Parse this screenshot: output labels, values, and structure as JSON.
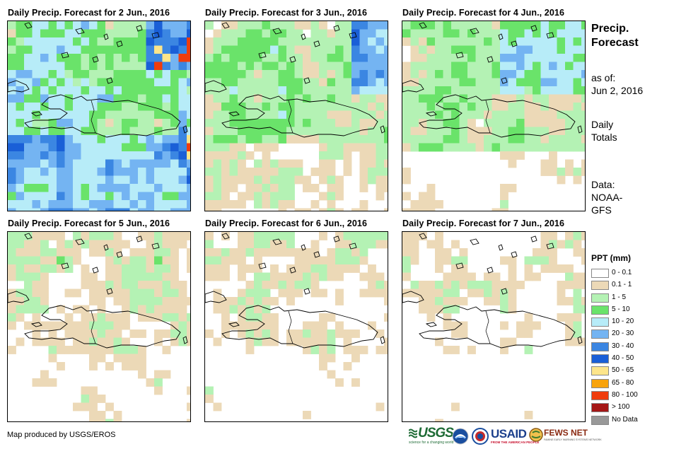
{
  "panels": [
    {
      "title": "Daily Precip. Forecast for 2 Jun., 2016",
      "day": 0
    },
    {
      "title": "Daily Precip. Forecast for 3 Jun., 2016",
      "day": 1
    },
    {
      "title": "Daily Precip. Forecast for 4 Jun., 2016",
      "day": 2
    },
    {
      "title": "Daily Precip. Forecast for 5 Jun., 2016",
      "day": 3
    },
    {
      "title": "Daily Precip. Forecast for 6 Jun., 2016",
      "day": 4
    },
    {
      "title": "Daily Precip. Forecast for 7 Jun., 2016",
      "day": 5
    }
  ],
  "info": {
    "heading_line1": "Precip.",
    "heading_line2": "Forecast",
    "asof_line1": "as of:",
    "asof_line2": "Jun 2, 2016",
    "totals_line1": "Daily",
    "totals_line2": "Totals",
    "data_line1": "Data:",
    "data_line2": "NOAA-",
    "data_line3": "GFS"
  },
  "legend": {
    "title": "PPT (mm)",
    "classes": [
      {
        "label": "0 - 0.1",
        "color": "#ffffff"
      },
      {
        "label": "0.1 - 1",
        "color": "#ecd9b7"
      },
      {
        "label": "1 - 5",
        "color": "#b4f2b4"
      },
      {
        "label": "5 - 10",
        "color": "#6ae36a"
      },
      {
        "label": "10 - 20",
        "color": "#b7ecf8"
      },
      {
        "label": "20 - 30",
        "color": "#74b4f2"
      },
      {
        "label": "30 - 40",
        "color": "#3b86e2"
      },
      {
        "label": "40 - 50",
        "color": "#1a5fd7"
      },
      {
        "label": "50 - 65",
        "color": "#fde58a"
      },
      {
        "label": "65 - 80",
        "color": "#f8a30c"
      },
      {
        "label": "80 - 100",
        "color": "#f03c0c"
      },
      {
        "label": "> 100",
        "color": "#a51717"
      },
      {
        "label": "No Data",
        "color": "#999999"
      }
    ]
  },
  "credit": "Map produced by USGS/EROS",
  "logos": {
    "usgs": "USGS",
    "usgs_tag": "science for a changing world",
    "usaid": "USAID",
    "usaid_tag": "FROM THE AMERICAN PEOPLE",
    "fewsnet": "FEWS NET",
    "fewsnet_tag": "FAMINE EARLY WARNING SYSTEMS NETWORK"
  }
}
